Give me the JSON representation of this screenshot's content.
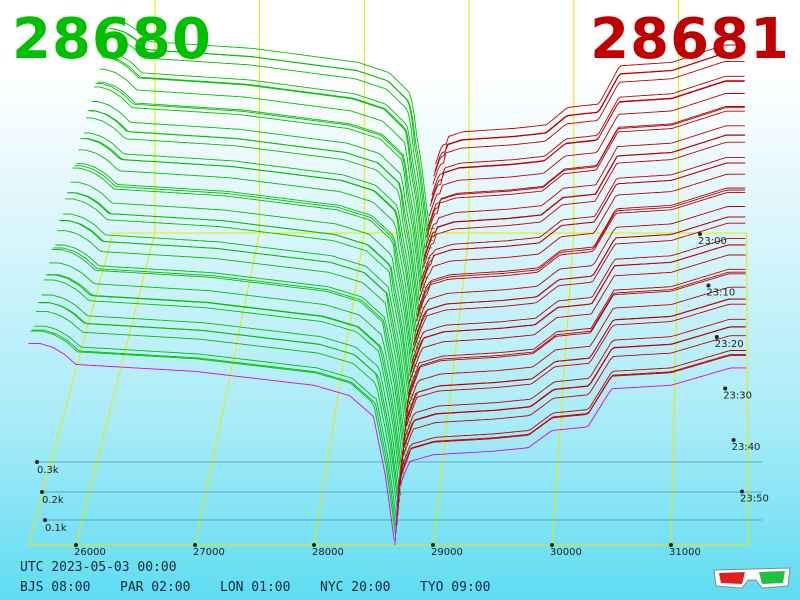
{
  "header": {
    "bid_price": "28680",
    "ask_price": "28681"
  },
  "footer": {
    "utc": "UTC 2023-05-03 00:00",
    "zones": [
      "BJS 08:00",
      "PAR 02:00",
      "LON 01:00",
      "NYC 20:00",
      "TYO 09:00"
    ]
  },
  "colors": {
    "bid": "#00c000",
    "ask": "#c00000",
    "grid": "#e8e800",
    "latest": "#e000e0"
  },
  "icon": "3d-glasses-icon",
  "chart_data": {
    "type": "3d-depth",
    "x_ticks": [
      26000,
      27000,
      28000,
      29000,
      30000,
      31000
    ],
    "x_tick_labels": [
      "26000",
      "27000",
      "28000",
      "29000",
      "30000",
      "31000"
    ],
    "z_ticks": [
      0.1,
      0.2,
      0.3
    ],
    "z_tick_labels": [
      "0.1k",
      "0.2k",
      "0.3k"
    ],
    "time_ticks": [
      "23:00",
      "23:10",
      "23:20",
      "23:30",
      "23:40",
      "23:50"
    ],
    "xlim": [
      25600,
      31650
    ],
    "zlim": [
      0,
      0.8
    ],
    "mid_price": 28680.5,
    "series": [
      {
        "side": "bid",
        "price": [
          25700,
          25800,
          25900,
          26000,
          26500,
          27000,
          27500,
          28000,
          28300,
          28500,
          28600,
          28680
        ],
        "cum_volume_k": [
          0.58,
          0.57,
          0.55,
          0.52,
          0.51,
          0.5,
          0.48,
          0.46,
          0.43,
          0.37,
          0.2,
          0.0
        ]
      },
      {
        "side": "ask",
        "price": [
          28681,
          28700,
          28800,
          29000,
          29500,
          29800,
          30000,
          30300,
          30500,
          31000,
          31300,
          31500
        ],
        "cum_volume_k": [
          0.0,
          0.15,
          0.24,
          0.26,
          0.27,
          0.28,
          0.33,
          0.34,
          0.45,
          0.46,
          0.49,
          0.51
        ]
      }
    ]
  }
}
